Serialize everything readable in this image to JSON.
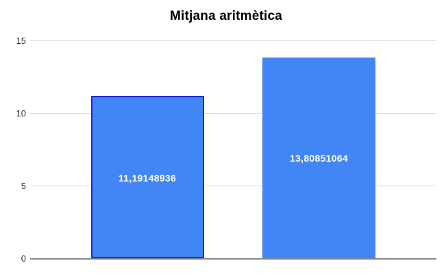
{
  "chart_data": {
    "type": "bar",
    "title": "Mitjana aritmètica",
    "categories": [
      "",
      ""
    ],
    "values": [
      11.19148936,
      13.80851064
    ],
    "value_labels": [
      "11,19148936",
      "13,80851064"
    ],
    "xlabel": "",
    "ylabel": "",
    "ylim": [
      0,
      15
    ],
    "yticks": [
      0,
      5,
      10,
      15
    ],
    "ytick_labels": [
      "0",
      "5",
      "10",
      "15"
    ],
    "grid": true,
    "legend": "none",
    "selected_bar_index": 0,
    "colors": {
      "bar_fill": "#4285f4",
      "selected_bar_border": "#2027d8",
      "bar_label_text": "#ffffff",
      "gridline": "#d9d9d9",
      "axis_line": "#80868b",
      "tick_label": "#2d2d2d",
      "title": "#000000",
      "background": "#ffffff"
    }
  }
}
